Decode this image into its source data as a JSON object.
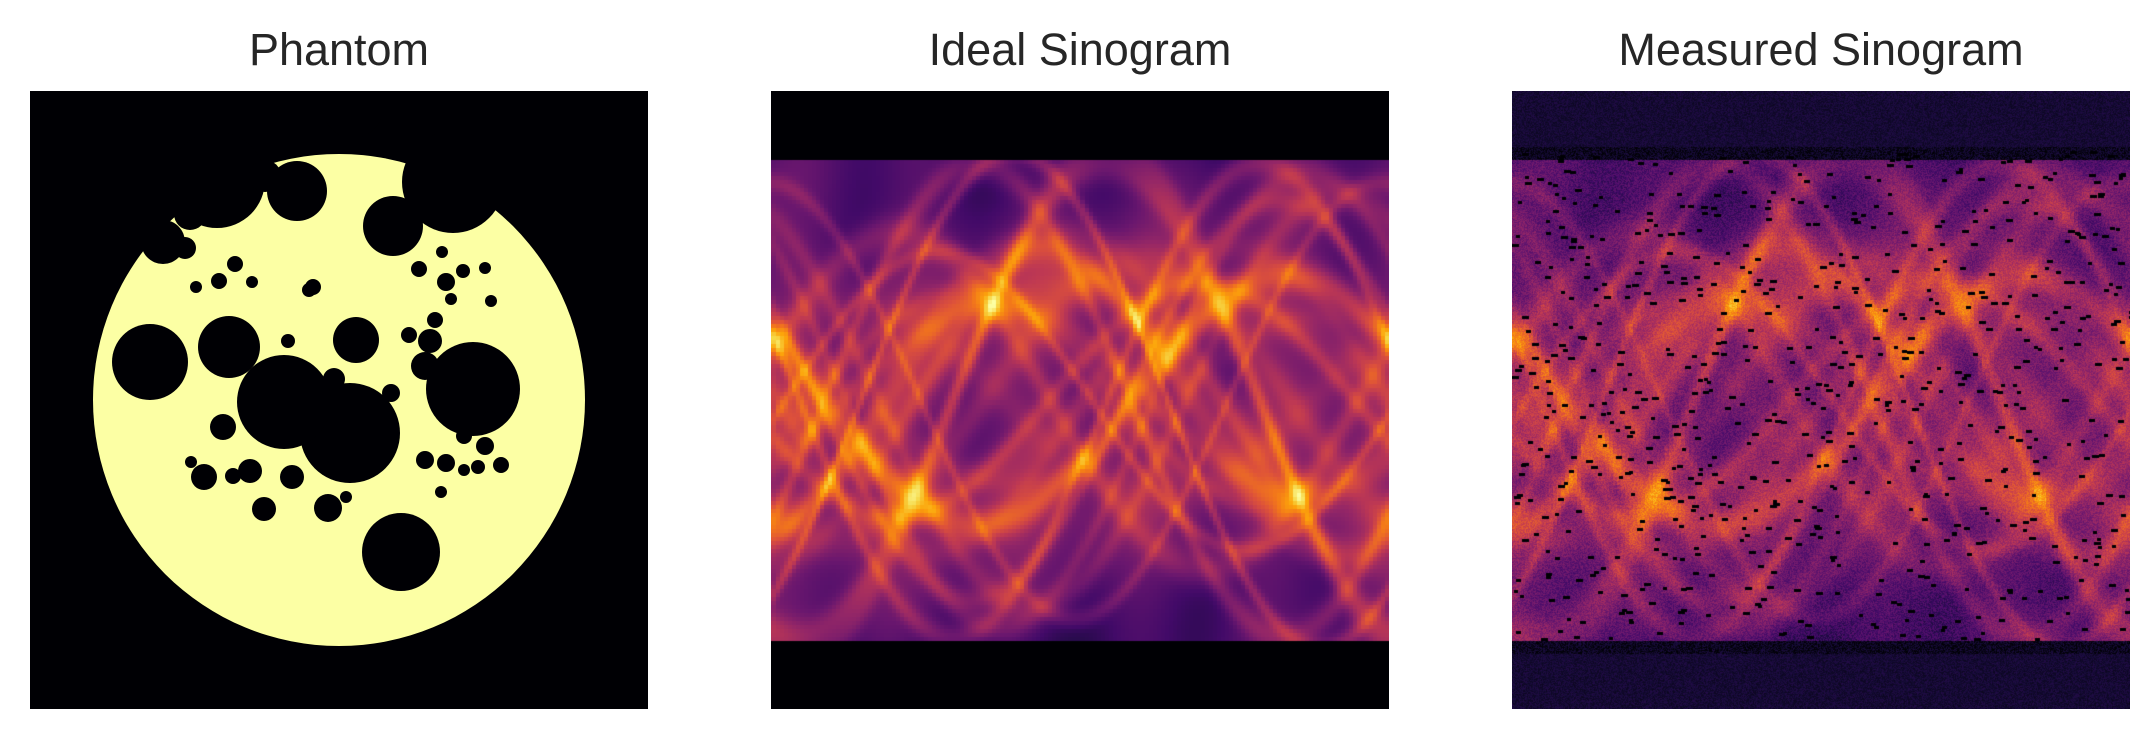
{
  "panels": [
    {
      "title": "Phantom",
      "image": "phantom"
    },
    {
      "title": "Ideal Sinogram",
      "image": "ideal-sinogram"
    },
    {
      "title": "Measured Sinogram",
      "image": "measured-sinogram"
    }
  ],
  "colormap": "inferno",
  "colors": {
    "background": "#000004",
    "phantom_fill": "#fcffa4",
    "title_text": "#262626"
  }
}
